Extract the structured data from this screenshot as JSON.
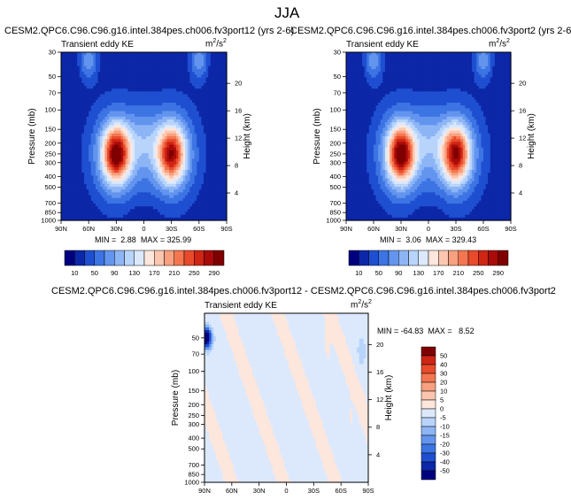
{
  "figure": {
    "season_title": "JJA",
    "variable_label": "Transient eddy KE",
    "units_base": "m",
    "units_exp": "2",
    "units_slash": "/s",
    "units_exp2": "2"
  },
  "colors": {
    "base_scale": [
      "#00007f",
      "#0c27a8",
      "#1f4fd1",
      "#3d74e3",
      "#6395ef",
      "#8db5f6",
      "#b8d4fb",
      "#dce9fd",
      "#fde6dc",
      "#fbc6af",
      "#f8a07f",
      "#f47650",
      "#e84b2b",
      "#cf2514",
      "#a80b09",
      "#7f0000"
    ],
    "diff_scale": [
      "#00007f",
      "#0c27a8",
      "#1f4fd1",
      "#3d74e3",
      "#6395ef",
      "#8db5f6",
      "#a9c9f8",
      "#c7dcfb",
      "#dce9fd",
      "#fde6dc",
      "#fbc6af",
      "#f8a07f",
      "#f47650",
      "#e84b2b",
      "#cf2514",
      "#a80b09",
      "#7f0000"
    ]
  },
  "chart_data": [
    {
      "type": "heatmap",
      "title": "CESM2.QPC6.C96.C96.g16.intel.384pes.ch006.fv3port12 (yrs 2-6)",
      "subtitle": "Transient eddy KE",
      "xlabel": "",
      "ylabel": "Pressure (mb)",
      "ylabel_right": "Height (km)",
      "x_ticks": [
        "90N",
        "60N",
        "30N",
        "0",
        "30S",
        "60S",
        "90S"
      ],
      "y_ticks": [
        "30",
        "50",
        "70",
        "100",
        "150",
        "200",
        "250",
        "300",
        "400",
        "500",
        "700",
        "850",
        "1000"
      ],
      "y_right_ticks": [
        "20",
        "16",
        "12",
        "8",
        "4"
      ],
      "min": "2.88",
      "max": "325.99",
      "min_label": "MIN =",
      "max_label": "MAX =",
      "colorbar_levels": [
        "10",
        "50",
        "90",
        "130",
        "170",
        "210",
        "250",
        "290"
      ],
      "jet_peaks": [
        {
          "lat": 30,
          "pressure_mb": 250,
          "value": 325.99
        },
        {
          "lat": -30,
          "pressure_mb": 250,
          "value": 300
        }
      ]
    },
    {
      "type": "heatmap",
      "title": "CESM2.QPC6.C96.C96.g16.intel.384pes.ch006.fv3port2 (yrs 2-6)",
      "subtitle": "Transient eddy KE",
      "xlabel": "",
      "ylabel": "Pressure (mb)",
      "ylabel_right": "Height (km)",
      "x_ticks": [
        "90N",
        "60N",
        "30N",
        "0",
        "30S",
        "60S",
        "90S"
      ],
      "y_ticks": [
        "30",
        "50",
        "70",
        "100",
        "150",
        "200",
        "250",
        "300",
        "400",
        "500",
        "700",
        "850",
        "1000"
      ],
      "y_right_ticks": [
        "20",
        "16",
        "12",
        "8",
        "4"
      ],
      "min": "3.06",
      "max": "329.43",
      "min_label": "MIN =",
      "max_label": "MAX =",
      "colorbar_levels": [
        "10",
        "50",
        "90",
        "130",
        "170",
        "210",
        "250",
        "290"
      ],
      "jet_peaks": [
        {
          "lat": 30,
          "pressure_mb": 250,
          "value": 329.43
        },
        {
          "lat": -30,
          "pressure_mb": 250,
          "value": 305
        }
      ]
    },
    {
      "type": "heatmap",
      "title": "CESM2.QPC6.C96.C96.g16.intel.384pes.ch006.fv3port12 - CESM2.QPC6.C96.C96.g16.intel.384pes.ch006.fv3port2",
      "subtitle": "Transient eddy KE",
      "xlabel": "",
      "ylabel": "Pressure (mb)",
      "ylabel_right": "Height (km)",
      "x_ticks": [
        "90N",
        "60N",
        "30N",
        "0",
        "30S",
        "60S",
        "90S"
      ],
      "y_ticks": [
        "50",
        "70",
        "100",
        "150",
        "200",
        "250",
        "300",
        "400",
        "500",
        "700",
        "850",
        "1000"
      ],
      "y_right_ticks": [
        "20",
        "16",
        "12",
        "8",
        "4"
      ],
      "min": "-64.83",
      "max": "8.52",
      "min_label": "MIN =",
      "max_label": "MAX =",
      "colorbar_levels": [
        "50",
        "40",
        "30",
        "20",
        "10",
        "5",
        "0",
        "-5",
        "-10",
        "-15",
        "-20",
        "-30",
        "-40",
        "-50"
      ]
    }
  ]
}
